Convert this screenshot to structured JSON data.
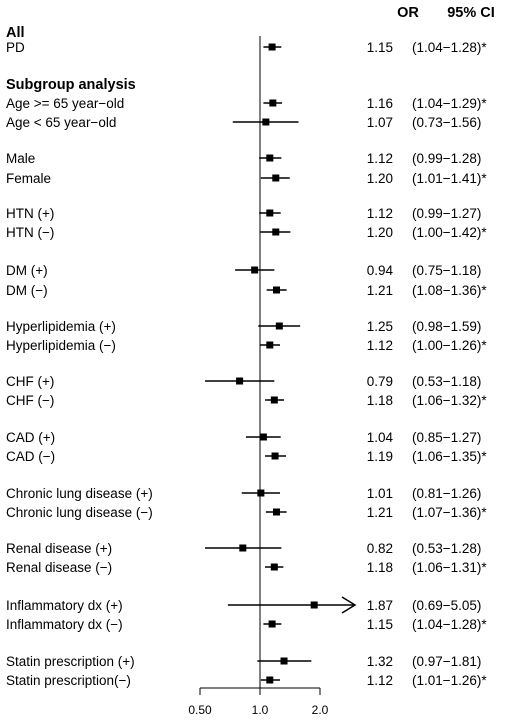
{
  "chart_data": {
    "type": "forest",
    "column_headers": {
      "or": "OR",
      "ci": "95% CI"
    },
    "x_scale": "log",
    "x_ticks": [
      0.5,
      1.0,
      2.0
    ],
    "x_tick_labels": [
      "0.50",
      "1.0",
      "2.0"
    ],
    "x_range": [
      0.5,
      2.0
    ],
    "reference_line": 1.0,
    "groups": [
      {
        "header": "All",
        "rows": [
          {
            "label": "PD",
            "or": 1.15,
            "lo": 1.04,
            "hi": 1.28,
            "or_text": "1.15",
            "ci_text": "(1.04−1.28)*"
          }
        ]
      },
      {
        "header": "Subgroup analysis",
        "rows": [
          {
            "label": "Age >= 65 year−old",
            "or": 1.16,
            "lo": 1.04,
            "hi": 1.29,
            "or_text": "1.16",
            "ci_text": "(1.04−1.29)*"
          },
          {
            "label": "Age < 65 year−old",
            "or": 1.07,
            "lo": 0.73,
            "hi": 1.56,
            "or_text": "1.07",
            "ci_text": "(0.73−1.56)"
          }
        ]
      },
      {
        "rows": [
          {
            "label": "Male",
            "or": 1.12,
            "lo": 0.99,
            "hi": 1.28,
            "or_text": "1.12",
            "ci_text": "(0.99−1.28)"
          },
          {
            "label": "Female",
            "or": 1.2,
            "lo": 1.01,
            "hi": 1.41,
            "or_text": "1.20",
            "ci_text": "(1.01−1.41)*"
          }
        ]
      },
      {
        "rows": [
          {
            "label": "HTN (+)",
            "or": 1.12,
            "lo": 0.99,
            "hi": 1.27,
            "or_text": "1.12",
            "ci_text": "(0.99−1.27)"
          },
          {
            "label": "HTN (−)",
            "or": 1.2,
            "lo": 1.0,
            "hi": 1.42,
            "or_text": "1.20",
            "ci_text": "(1.00−1.42)*"
          }
        ]
      },
      {
        "rows": [
          {
            "label": "DM (+)",
            "or": 0.94,
            "lo": 0.75,
            "hi": 1.18,
            "or_text": "0.94",
            "ci_text": "(0.75−1.18)"
          },
          {
            "label": "DM (−)",
            "or": 1.21,
            "lo": 1.08,
            "hi": 1.36,
            "or_text": "1.21",
            "ci_text": "(1.08−1.36)*"
          }
        ]
      },
      {
        "rows": [
          {
            "label": "Hyperlipidemia (+)",
            "or": 1.25,
            "lo": 0.98,
            "hi": 1.59,
            "or_text": "1.25",
            "ci_text": "(0.98−1.59)"
          },
          {
            "label": "Hyperlipidemia (−)",
            "or": 1.12,
            "lo": 1.0,
            "hi": 1.26,
            "or_text": "1.12",
            "ci_text": "(1.00−1.26)*"
          }
        ]
      },
      {
        "rows": [
          {
            "label": "CHF (+)",
            "or": 0.79,
            "lo": 0.53,
            "hi": 1.18,
            "or_text": "0.79",
            "ci_text": "(0.53−1.18)"
          },
          {
            "label": "CHF (−)",
            "or": 1.18,
            "lo": 1.06,
            "hi": 1.32,
            "or_text": "1.18",
            "ci_text": "(1.06−1.32)*"
          }
        ]
      },
      {
        "rows": [
          {
            "label": "CAD (+)",
            "or": 1.04,
            "lo": 0.85,
            "hi": 1.27,
            "or_text": "1.04",
            "ci_text": "(0.85−1.27)"
          },
          {
            "label": "CAD (−)",
            "or": 1.19,
            "lo": 1.06,
            "hi": 1.35,
            "or_text": "1.19",
            "ci_text": "(1.06−1.35)*"
          }
        ]
      },
      {
        "rows": [
          {
            "label": "Chronic lung disease (+)",
            "or": 1.01,
            "lo": 0.81,
            "hi": 1.26,
            "or_text": "1.01",
            "ci_text": "(0.81−1.26)"
          },
          {
            "label": "Chronic lung disease (−)",
            "or": 1.21,
            "lo": 1.07,
            "hi": 1.36,
            "or_text": "1.21",
            "ci_text": "(1.07−1.36)*"
          }
        ]
      },
      {
        "rows": [
          {
            "label": "Renal disease (+)",
            "or": 0.82,
            "lo": 0.53,
            "hi": 1.28,
            "or_text": "0.82",
            "ci_text": "(0.53−1.28)"
          },
          {
            "label": "Renal disease (−)",
            "or": 1.18,
            "lo": 1.06,
            "hi": 1.31,
            "or_text": "1.18",
            "ci_text": "(1.06−1.31)*"
          }
        ]
      },
      {
        "rows": [
          {
            "label": "Inflammatory dx (+)",
            "or": 1.87,
            "lo": 0.69,
            "hi": 5.05,
            "or_text": "1.87",
            "ci_text": "(0.69−5.05)"
          },
          {
            "label": "Inflammatory dx (−)",
            "or": 1.15,
            "lo": 1.04,
            "hi": 1.28,
            "or_text": "1.15",
            "ci_text": "(1.04−1.28)*"
          }
        ]
      },
      {
        "rows": [
          {
            "label": "Statin prescription (+)",
            "or": 1.32,
            "lo": 0.97,
            "hi": 1.81,
            "or_text": "1.32",
            "ci_text": "(0.97−1.81)"
          },
          {
            "label": "Statin prescription(−)",
            "or": 1.12,
            "lo": 1.01,
            "hi": 1.26,
            "or_text": "1.12",
            "ci_text": "(1.01−1.26)*"
          }
        ]
      }
    ]
  }
}
